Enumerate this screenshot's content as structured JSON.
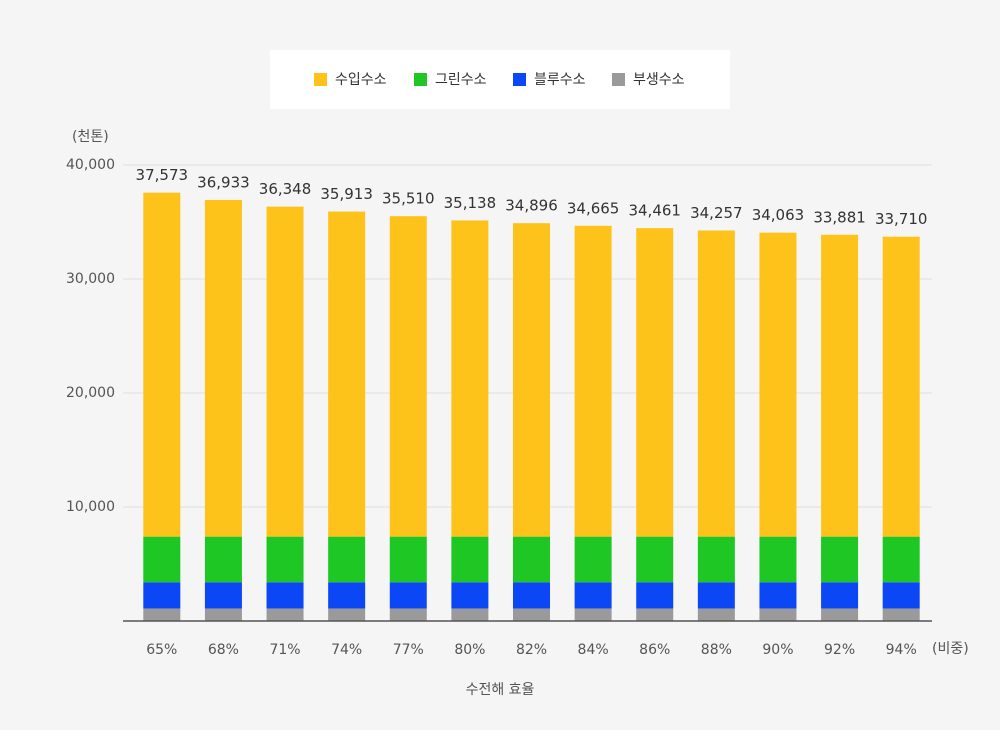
{
  "chart_data": {
    "type": "stacked_bar",
    "y_unit": "(천톤)",
    "x_unit": "(비중)",
    "x_title": "수전해 효율",
    "categories": [
      "65%",
      "68%",
      "71%",
      "74%",
      "77%",
      "80%",
      "82%",
      "84%",
      "86%",
      "88%",
      "90%",
      "92%",
      "94%"
    ],
    "series": [
      {
        "name": "수입수소",
        "color": "#fdc31a",
        "values": [
          30173,
          29533,
          28948,
          28513,
          28110,
          27738,
          27496,
          27265,
          27061,
          26857,
          26663,
          26481,
          26310
        ]
      },
      {
        "name": "그린수소",
        "color": "#1ec724",
        "values": [
          4000,
          4000,
          4000,
          4000,
          4000,
          4000,
          4000,
          4000,
          4000,
          4000,
          4000,
          4000,
          4000
        ]
      },
      {
        "name": "블루수소",
        "color": "#0c47f5",
        "values": [
          2300,
          2300,
          2300,
          2300,
          2300,
          2300,
          2300,
          2300,
          2300,
          2300,
          2300,
          2300,
          2300
        ]
      },
      {
        "name": "부생수소",
        "color": "#9a9a9a",
        "values": [
          1100,
          1100,
          1100,
          1100,
          1100,
          1100,
          1100,
          1100,
          1100,
          1100,
          1100,
          1100,
          1100
        ]
      }
    ],
    "totals": [
      37573,
      36933,
      36348,
      35913,
      35510,
      35138,
      34896,
      34665,
      34461,
      34257,
      34063,
      33881,
      33710
    ],
    "total_labels": [
      "37,573",
      "36,933",
      "36,348",
      "35,913",
      "35,510",
      "35,138",
      "34,896",
      "34,665",
      "34,461",
      "34,257",
      "34,063",
      "33,881",
      "33,710"
    ],
    "ylim": [
      0,
      40000
    ],
    "yticks": [
      {
        "value": 10000,
        "label": "10,000"
      },
      {
        "value": 20000,
        "label": "20,000"
      },
      {
        "value": 30000,
        "label": "30,000"
      },
      {
        "value": 40000,
        "label": "40,000"
      }
    ],
    "grid": true
  }
}
